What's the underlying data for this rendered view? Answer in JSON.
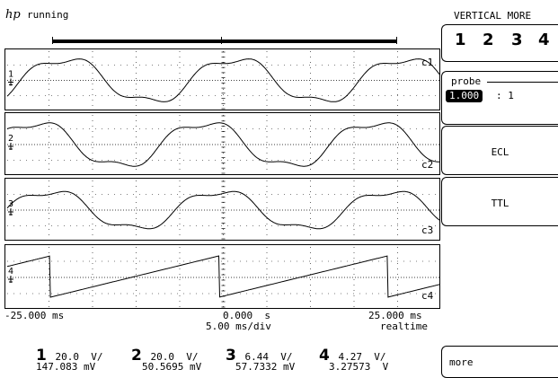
{
  "header": {
    "logo": "hp",
    "status": "running"
  },
  "timebase": {
    "left_time": "-25.000 ms",
    "center_time": "0.000  s",
    "right_time": "25.000 ms",
    "time_per_div": "5.00 ms/div",
    "acq_mode": "realtime"
  },
  "channels": [
    {
      "num": "1",
      "scale": "20.0  V/",
      "offset": "147.083 mV",
      "label": "c1"
    },
    {
      "num": "2",
      "scale": "20.0  V/",
      "offset": "50.5695 mV",
      "label": "c2"
    },
    {
      "num": "3",
      "scale": "6.44  V/",
      "offset": "57.7332 mV",
      "label": "c3"
    },
    {
      "num": "4",
      "scale": "4.27  V/",
      "offset": "3.27573  V",
      "label": "c4"
    }
  ],
  "menu": {
    "title": "VERTICAL MORE",
    "channel_select": [
      "1",
      "2",
      "3",
      "4"
    ],
    "probe_label": "probe",
    "probe_value": "1.000",
    "probe_ratio": ": 1",
    "ecl": "ECL",
    "ttl": "TTL",
    "more": "more"
  },
  "colors": {
    "background": "#ffffff",
    "trace": "#000000",
    "highlight": "#000000"
  }
}
